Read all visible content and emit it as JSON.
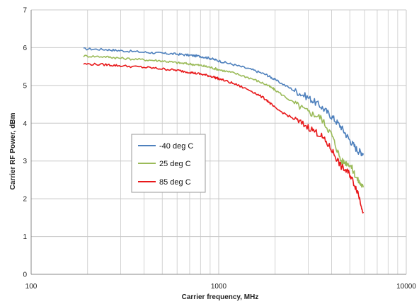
{
  "chart_data": {
    "type": "line",
    "title": "",
    "xlabel": "Carrier frequency, MHz",
    "ylabel": "Carrier RF Power, dBm",
    "xscale": "log",
    "xlim": [
      100,
      10000
    ],
    "ylim": [
      0,
      7
    ],
    "xticks": [
      "100",
      "1000",
      "10000"
    ],
    "yticks": [
      "0",
      "1",
      "2",
      "3",
      "4",
      "5",
      "6",
      "7"
    ],
    "grid": true,
    "legend": "center-left",
    "series": [
      {
        "name": "-40 deg C",
        "color": "#4f81bd",
        "x": [
          190,
          250,
          300,
          400,
          500,
          600,
          700,
          800,
          900,
          1000,
          1200,
          1500,
          1800,
          2000,
          2500,
          3000,
          3500,
          4000,
          4500,
          5000,
          5500,
          5900
        ],
        "y": [
          5.97,
          5.95,
          5.92,
          5.88,
          5.85,
          5.83,
          5.8,
          5.77,
          5.72,
          5.65,
          5.55,
          5.42,
          5.28,
          5.15,
          4.88,
          4.68,
          4.45,
          4.18,
          3.9,
          3.55,
          3.28,
          3.2
        ]
      },
      {
        "name": "25 deg C",
        "color": "#9bbb59",
        "x": [
          190,
          250,
          300,
          400,
          500,
          600,
          700,
          800,
          900,
          1000,
          1200,
          1500,
          1800,
          2000,
          2500,
          3000,
          3500,
          4000,
          4500,
          5000,
          5500,
          5900
        ],
        "y": [
          5.78,
          5.76,
          5.72,
          5.68,
          5.65,
          5.6,
          5.57,
          5.53,
          5.48,
          5.42,
          5.33,
          5.18,
          5.02,
          4.88,
          4.55,
          4.3,
          4.15,
          3.7,
          3.0,
          2.92,
          2.5,
          2.3
        ]
      },
      {
        "name": "85 deg C",
        "color": "#e8181a",
        "x": [
          190,
          250,
          300,
          400,
          500,
          600,
          700,
          800,
          900,
          1000,
          1200,
          1500,
          1800,
          2000,
          2500,
          3000,
          3500,
          4000,
          4500,
          5000,
          5500,
          5900
        ],
        "y": [
          5.57,
          5.55,
          5.52,
          5.48,
          5.44,
          5.4,
          5.35,
          5.3,
          5.25,
          5.18,
          5.05,
          4.85,
          4.62,
          4.4,
          4.12,
          3.9,
          3.68,
          3.3,
          2.85,
          2.65,
          2.2,
          1.65
        ]
      }
    ]
  }
}
